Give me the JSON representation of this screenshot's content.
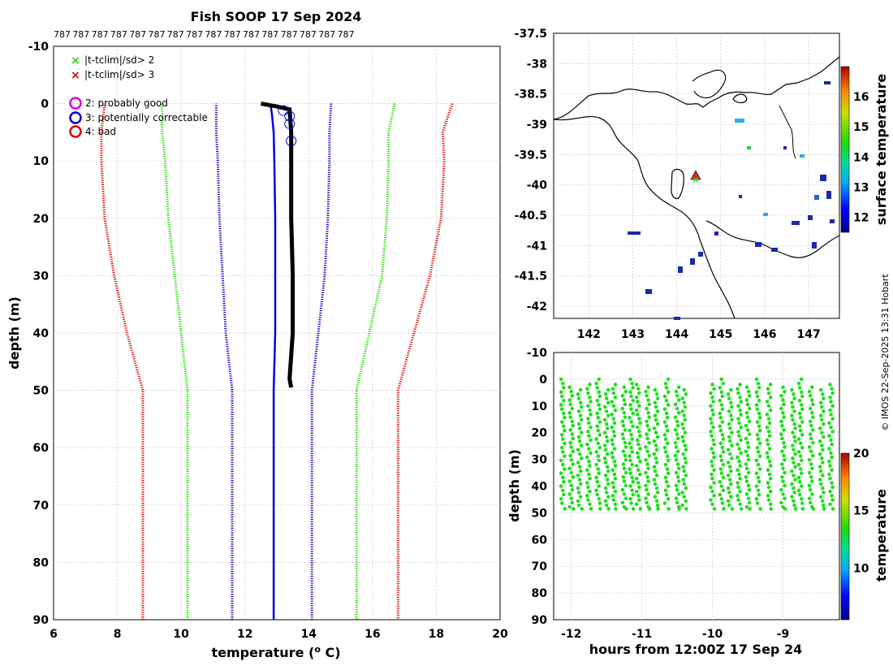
{
  "title": "Fish SOOP 17 Sep 2024",
  "credit": "© IMOS 22-Sep-2025 13:31 Hobart",
  "colors": {
    "red": "#dd0000",
    "green": "#22dd00",
    "blue_clim": "#0000cc",
    "profile": "#0000ee",
    "black": "#000000",
    "magenta": "#dd00dd",
    "grid": "#c8c8c8",
    "marker_green": "#22dd22"
  },
  "profile_panel": {
    "id_labels": [
      "787",
      "787",
      "787",
      "787",
      "787",
      "787",
      "787",
      "787",
      "787",
      "787",
      "787",
      "787",
      "787",
      "787",
      "787",
      "787"
    ],
    "xlabel": "temperature (",
    "xlabel_sup": "o",
    "xlabel_end": " C)",
    "ylabel": "depth (m)",
    "legend": {
      "x2": "|t-tclim|/sd> 2",
      "x3": "|t-tclim|/sd> 3",
      "flag2": "2: probably good",
      "flag3": "3: potentially correctable",
      "flag4": "4: bad"
    }
  },
  "map_panel": {
    "colorbar_label": "surface temperature"
  },
  "section_panel": {
    "xlabel": "hours from 12:00Z 17 Sep 24",
    "ylabel": "depth (m)",
    "colorbar_label": "temperature"
  },
  "chart_data": [
    {
      "type": "line",
      "name": "temperature-profile",
      "xlim": [
        6,
        20
      ],
      "ylim": [
        90,
        -10
      ],
      "xticks": [
        6,
        8,
        10,
        12,
        14,
        16,
        18,
        20
      ],
      "yticks": [
        -10,
        0,
        10,
        20,
        30,
        40,
        50,
        60,
        70,
        80,
        90
      ],
      "series": [
        {
          "name": "clim+3sd",
          "color": "red",
          "style": "dotted",
          "points": [
            [
              18.5,
              0
            ],
            [
              18.2,
              5
            ],
            [
              18.25,
              10
            ],
            [
              18.15,
              20
            ],
            [
              17.8,
              30
            ],
            [
              17.3,
              40
            ],
            [
              16.8,
              50
            ],
            [
              16.8,
              90
            ]
          ]
        },
        {
          "name": "clim-3sd",
          "color": "red",
          "style": "dotted",
          "points": [
            [
              8.8,
              90
            ],
            [
              8.8,
              50
            ],
            [
              8.3,
              40
            ],
            [
              7.9,
              30
            ],
            [
              7.6,
              20
            ],
            [
              7.5,
              10
            ],
            [
              7.5,
              5
            ],
            [
              7.6,
              0
            ]
          ]
        },
        {
          "name": "clim+2sd",
          "color": "green",
          "style": "dotted",
          "points": [
            [
              16.7,
              0
            ],
            [
              16.5,
              5
            ],
            [
              16.5,
              10
            ],
            [
              16.45,
              20
            ],
            [
              16.3,
              30
            ],
            [
              15.9,
              40
            ],
            [
              15.5,
              50
            ],
            [
              15.5,
              90
            ]
          ]
        },
        {
          "name": "clim-2sd",
          "color": "green",
          "style": "dotted",
          "points": [
            [
              10.2,
              90
            ],
            [
              10.2,
              50
            ],
            [
              10.0,
              40
            ],
            [
              9.8,
              30
            ],
            [
              9.6,
              20
            ],
            [
              9.5,
              10
            ],
            [
              9.4,
              5
            ],
            [
              9.4,
              0
            ]
          ]
        },
        {
          "name": "clim+1sd",
          "color": "blue_clim",
          "style": "dotted",
          "points": [
            [
              14.7,
              0
            ],
            [
              14.65,
              5
            ],
            [
              14.65,
              10
            ],
            [
              14.6,
              20
            ],
            [
              14.5,
              30
            ],
            [
              14.3,
              40
            ],
            [
              14.1,
              50
            ],
            [
              14.1,
              90
            ]
          ]
        },
        {
          "name": "clim-1sd",
          "color": "blue_clim",
          "style": "dotted",
          "points": [
            [
              11.6,
              90
            ],
            [
              11.6,
              50
            ],
            [
              11.4,
              40
            ],
            [
              11.3,
              30
            ],
            [
              11.2,
              20
            ],
            [
              11.15,
              10
            ],
            [
              11.1,
              5
            ],
            [
              11.1,
              0
            ]
          ]
        },
        {
          "name": "profile",
          "color": "profile",
          "style": "solid",
          "points": [
            [
              12.9,
              90
            ],
            [
              12.9,
              60
            ],
            [
              12.9,
              50
            ],
            [
              12.95,
              40
            ],
            [
              12.95,
              30
            ],
            [
              12.95,
              20
            ],
            [
              12.92,
              10
            ],
            [
              12.9,
              5
            ],
            [
              12.85,
              2
            ],
            [
              12.8,
              0
            ]
          ]
        },
        {
          "name": "profile-black",
          "color": "black",
          "style": "solid",
          "points": [
            [
              12.5,
              0
            ],
            [
              13.0,
              0.5
            ],
            [
              13.4,
              1
            ],
            [
              13.45,
              5
            ],
            [
              13.45,
              10
            ],
            [
              13.45,
              20
            ],
            [
              13.5,
              30
            ],
            [
              13.5,
              40
            ],
            [
              13.4,
              48
            ],
            [
              13.45,
              49.5
            ]
          ]
        }
      ],
      "flag_markers": [
        [
          13.2,
          1.2
        ],
        [
          13.4,
          2.2
        ],
        [
          13.4,
          3.5
        ],
        [
          13.45,
          6.5
        ]
      ]
    },
    {
      "type": "scatter",
      "name": "map",
      "xlim": [
        141.2,
        147.7
      ],
      "ylim": [
        -42.2,
        -37.5
      ],
      "xticks": [
        142,
        143,
        144,
        145,
        146,
        147
      ],
      "yticks": [
        -37.5,
        -38,
        -38.5,
        -39,
        -39.5,
        -40,
        -40.5,
        -41,
        -41.5,
        -42
      ],
      "colorbar": {
        "min": 11.5,
        "max": 17,
        "ticks": [
          12,
          13,
          14,
          15,
          16
        ]
      },
      "station": [
        144.4,
        -39.7
      ]
    },
    {
      "type": "scatter",
      "name": "depth-time-section",
      "xlim": [
        -12.25,
        -8.2
      ],
      "ylim": [
        90,
        -10
      ],
      "xticks": [
        -12,
        -11,
        -10,
        -9
      ],
      "yticks": [
        -10,
        0,
        10,
        20,
        30,
        40,
        50,
        60,
        70,
        80,
        90
      ],
      "colorbar": {
        "min": 5.5,
        "max": 20,
        "ticks": [
          10,
          15,
          20
        ]
      },
      "profile_times": [
        -12.12,
        -12.0,
        -11.88,
        -11.75,
        -11.62,
        -11.5,
        -11.4,
        -11.25,
        -11.15,
        -11.05,
        -10.92,
        -10.8,
        -10.65,
        -10.5,
        -10.4,
        -10.0,
        -9.87,
        -9.75,
        -9.62,
        -9.5,
        -9.35,
        -9.2,
        -9.0,
        -8.85,
        -8.75,
        -8.6,
        -8.45,
        -8.32
      ]
    }
  ]
}
